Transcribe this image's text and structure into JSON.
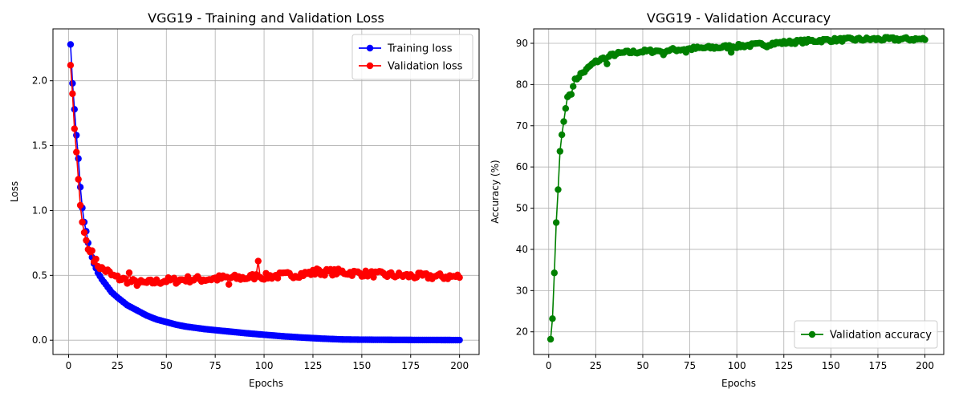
{
  "chart_data": [
    {
      "type": "line",
      "title": "VGG19 - Training and Validation Loss",
      "xlabel": "Epochs",
      "ylabel": "Loss",
      "xlim": [
        -8,
        210
      ],
      "ylim": [
        -0.11,
        2.4
      ],
      "xticks": [
        0,
        25,
        50,
        75,
        100,
        125,
        150,
        175,
        200
      ],
      "yticks": [
        0.0,
        0.5,
        1.0,
        1.5,
        2.0
      ],
      "grid": true,
      "legend": "top-right",
      "series": [
        {
          "name": "Training loss",
          "color": "#0000ff",
          "anchors": [
            [
              1,
              2.28
            ],
            [
              2,
              1.98
            ],
            [
              3,
              1.78
            ],
            [
              4,
              1.58
            ],
            [
              5,
              1.4
            ],
            [
              6,
              1.18
            ],
            [
              7,
              1.02
            ],
            [
              8,
              0.91
            ],
            [
              9,
              0.84
            ],
            [
              10,
              0.75
            ],
            [
              11,
              0.69
            ],
            [
              12,
              0.64
            ],
            [
              13,
              0.59
            ],
            [
              15,
              0.52
            ],
            [
              17,
              0.47
            ],
            [
              20,
              0.41
            ],
            [
              22,
              0.37
            ],
            [
              25,
              0.33
            ],
            [
              30,
              0.27
            ],
            [
              35,
              0.23
            ],
            [
              40,
              0.19
            ],
            [
              45,
              0.16
            ],
            [
              50,
              0.14
            ],
            [
              55,
              0.12
            ],
            [
              60,
              0.105
            ],
            [
              70,
              0.085
            ],
            [
              80,
              0.07
            ],
            [
              90,
              0.055
            ],
            [
              100,
              0.042
            ],
            [
              110,
              0.03
            ],
            [
              120,
              0.02
            ],
            [
              130,
              0.012
            ],
            [
              140,
              0.006
            ],
            [
              150,
              0.004
            ],
            [
              175,
              0.002
            ],
            [
              200,
              0.001
            ]
          ]
        },
        {
          "name": "Validation loss",
          "color": "#ff0000",
          "anchors": [
            [
              1,
              2.12
            ],
            [
              2,
              1.9
            ],
            [
              3,
              1.63
            ],
            [
              4,
              1.45
            ],
            [
              5,
              1.24
            ],
            [
              6,
              1.04
            ],
            [
              7,
              0.91
            ],
            [
              8,
              0.83
            ],
            [
              9,
              0.77
            ],
            [
              10,
              0.7
            ],
            [
              11,
              0.68
            ],
            [
              12,
              0.69
            ],
            [
              13,
              0.63
            ],
            [
              15,
              0.58
            ],
            [
              17,
              0.55
            ],
            [
              20,
              0.53
            ],
            [
              22,
              0.5
            ],
            [
              25,
              0.48
            ],
            [
              30,
              0.46
            ],
            [
              35,
              0.44
            ],
            [
              40,
              0.44
            ],
            [
              45,
              0.45
            ],
            [
              50,
              0.46
            ],
            [
              55,
              0.46
            ],
            [
              60,
              0.47
            ],
            [
              70,
              0.47
            ],
            [
              80,
              0.48
            ],
            [
              90,
              0.48
            ],
            [
              95,
              0.49
            ],
            [
              100,
              0.49
            ],
            [
              110,
              0.5
            ],
            [
              120,
              0.51
            ],
            [
              125,
              0.52
            ],
            [
              130,
              0.525
            ],
            [
              140,
              0.525
            ],
            [
              150,
              0.515
            ],
            [
              160,
              0.505
            ],
            [
              175,
              0.495
            ],
            [
              190,
              0.49
            ],
            [
              200,
              0.49
            ]
          ],
          "noise": 0.025,
          "spikes": [
            [
              97,
              0.61
            ],
            [
              31,
              0.52
            ],
            [
              127,
              0.55
            ],
            [
              82,
              0.43
            ]
          ]
        }
      ]
    },
    {
      "type": "line",
      "title": "VGG19 - Validation Accuracy",
      "xlabel": "Epochs",
      "ylabel": "Accuracy (%)",
      "xlim": [
        -8,
        210
      ],
      "ylim": [
        14.5,
        93.5
      ],
      "xticks": [
        0,
        25,
        50,
        75,
        100,
        125,
        150,
        175,
        200
      ],
      "yticks": [
        20,
        30,
        40,
        50,
        60,
        70,
        80,
        90
      ],
      "grid": true,
      "legend": "bottom-right",
      "series": [
        {
          "name": "Validation accuracy",
          "color": "#008000",
          "anchors": [
            [
              1,
              18.2
            ],
            [
              2,
              23.2
            ],
            [
              3,
              34.3
            ],
            [
              4,
              46.5
            ],
            [
              5,
              54.5
            ],
            [
              6,
              63.8
            ],
            [
              7,
              67.8
            ],
            [
              8,
              71.0
            ],
            [
              9,
              74.2
            ],
            [
              10,
              77.0
            ],
            [
              11,
              77.5
            ],
            [
              12,
              77.6
            ],
            [
              13,
              80.0
            ],
            [
              14,
              81.0
            ],
            [
              15,
              81.5
            ],
            [
              17,
              82.5
            ],
            [
              20,
              83.5
            ],
            [
              22,
              84.5
            ],
            [
              25,
              85.5
            ],
            [
              30,
              86.5
            ],
            [
              35,
              87.3
            ],
            [
              40,
              87.7
            ],
            [
              50,
              88.0
            ],
            [
              60,
              88.2
            ],
            [
              70,
              88.5
            ],
            [
              80,
              88.8
            ],
            [
              90,
              89.0
            ],
            [
              100,
              89.3
            ],
            [
              110,
              89.6
            ],
            [
              120,
              90.0
            ],
            [
              130,
              90.3
            ],
            [
              140,
              90.6
            ],
            [
              150,
              90.8
            ],
            [
              160,
              90.9
            ],
            [
              175,
              91.0
            ],
            [
              190,
              91.0
            ],
            [
              200,
              91.0
            ]
          ],
          "noise": 0.45,
          "spikes": [
            [
              31,
              85.0
            ],
            [
              61,
              87.2
            ],
            [
              73,
              87.8
            ],
            [
              97,
              87.8
            ],
            [
              116,
              89.1
            ]
          ]
        }
      ]
    }
  ]
}
